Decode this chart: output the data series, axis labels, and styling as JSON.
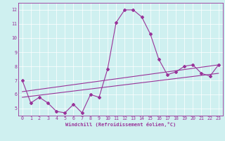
{
  "xlabel": "Windchill (Refroidissement éolien,°C)",
  "bg_color": "#cff0f0",
  "line_color": "#993399",
  "xlim": [
    -0.5,
    23.5
  ],
  "ylim": [
    4.5,
    12.5
  ],
  "yticks": [
    5,
    6,
    7,
    8,
    9,
    10,
    11,
    12
  ],
  "xticks": [
    0,
    1,
    2,
    3,
    4,
    5,
    6,
    7,
    8,
    9,
    10,
    11,
    12,
    13,
    14,
    15,
    16,
    17,
    18,
    19,
    20,
    21,
    22,
    23
  ],
  "main_series_x": [
    0,
    1,
    2,
    3,
    4,
    5,
    6,
    7,
    8,
    9,
    10,
    11,
    12,
    13,
    14,
    15,
    16,
    17,
    18,
    19,
    20,
    21,
    22,
    23
  ],
  "main_series_y": [
    7.0,
    5.4,
    5.8,
    5.4,
    4.8,
    4.7,
    5.3,
    4.7,
    6.0,
    5.8,
    7.8,
    11.1,
    12.0,
    12.0,
    11.5,
    10.3,
    8.5,
    7.4,
    7.6,
    8.0,
    8.1,
    7.5,
    7.3,
    8.1
  ],
  "trend1_x": [
    0,
    23
  ],
  "trend1_y": [
    5.8,
    7.5
  ],
  "trend2_x": [
    0,
    23
  ],
  "trend2_y": [
    6.2,
    8.1
  ]
}
